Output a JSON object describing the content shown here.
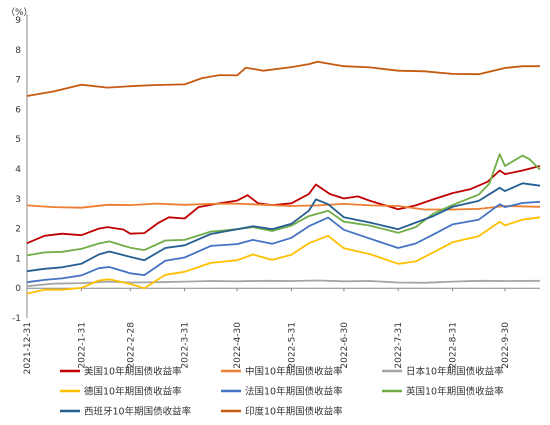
{
  "chart_data": {
    "type": "line",
    "unit_label": "（%）",
    "ylim": [
      -1,
      9
    ],
    "y_ticks": [
      -1,
      0,
      1,
      2,
      3,
      4,
      5,
      6,
      7,
      8,
      9
    ],
    "x_range": [
      "2021-12-31",
      "2022-10-20"
    ],
    "x_ticks": [
      "2021-12-31",
      "2022-1-31",
      "2022-2-28",
      "2022-3-31",
      "2022-4-30",
      "2022-5-31",
      "2022-6-30",
      "2022-7-31",
      "2022-8-31",
      "2022-9-30"
    ],
    "grid": false,
    "legend_position": "bottom",
    "series": [
      {
        "name": "美国10年期国债收益率",
        "color": "#c00000",
        "points": [
          [
            "2021-12-31",
            1.51
          ],
          [
            "2022-01-10",
            1.76
          ],
          [
            "2022-01-20",
            1.83
          ],
          [
            "2022-01-31",
            1.78
          ],
          [
            "2022-02-10",
            2.0
          ],
          [
            "2022-02-15",
            2.05
          ],
          [
            "2022-02-24",
            1.97
          ],
          [
            "2022-02-28",
            1.83
          ],
          [
            "2022-03-08",
            1.85
          ],
          [
            "2022-03-16",
            2.19
          ],
          [
            "2022-03-22",
            2.38
          ],
          [
            "2022-03-31",
            2.34
          ],
          [
            "2022-04-08",
            2.72
          ],
          [
            "2022-04-20",
            2.85
          ],
          [
            "2022-04-30",
            2.94
          ],
          [
            "2022-05-06",
            3.12
          ],
          [
            "2022-05-12",
            2.85
          ],
          [
            "2022-05-20",
            2.79
          ],
          [
            "2022-05-31",
            2.85
          ],
          [
            "2022-06-10",
            3.16
          ],
          [
            "2022-06-14",
            3.48
          ],
          [
            "2022-06-22",
            3.16
          ],
          [
            "2022-06-30",
            3.01
          ],
          [
            "2022-07-08",
            3.08
          ],
          [
            "2022-07-15",
            2.93
          ],
          [
            "2022-07-31",
            2.65
          ],
          [
            "2022-08-10",
            2.78
          ],
          [
            "2022-08-20",
            2.98
          ],
          [
            "2022-08-31",
            3.19
          ],
          [
            "2022-09-10",
            3.32
          ],
          [
            "2022-09-20",
            3.57
          ],
          [
            "2022-09-27",
            3.95
          ],
          [
            "2022-09-30",
            3.83
          ],
          [
            "2022-10-10",
            3.95
          ],
          [
            "2022-10-20",
            4.1
          ]
        ]
      },
      {
        "name": "中国10年期国债收益率",
        "color": "#ed7d31",
        "points": [
          [
            "2021-12-31",
            2.78
          ],
          [
            "2022-01-15",
            2.72
          ],
          [
            "2022-01-31",
            2.7
          ],
          [
            "2022-02-15",
            2.8
          ],
          [
            "2022-02-28",
            2.79
          ],
          [
            "2022-03-15",
            2.84
          ],
          [
            "2022-03-31",
            2.8
          ],
          [
            "2022-04-15",
            2.83
          ],
          [
            "2022-04-30",
            2.84
          ],
          [
            "2022-05-15",
            2.8
          ],
          [
            "2022-05-31",
            2.76
          ],
          [
            "2022-06-15",
            2.78
          ],
          [
            "2022-06-30",
            2.83
          ],
          [
            "2022-07-15",
            2.78
          ],
          [
            "2022-07-31",
            2.76
          ],
          [
            "2022-08-15",
            2.64
          ],
          [
            "2022-08-31",
            2.64
          ],
          [
            "2022-09-15",
            2.66
          ],
          [
            "2022-09-30",
            2.76
          ],
          [
            "2022-10-20",
            2.73
          ]
        ]
      },
      {
        "name": "日本10年期国债收益率",
        "color": "#a5a5a5",
        "points": [
          [
            "2021-12-31",
            0.07
          ],
          [
            "2022-01-15",
            0.15
          ],
          [
            "2022-01-31",
            0.17
          ],
          [
            "2022-02-15",
            0.22
          ],
          [
            "2022-02-28",
            0.19
          ],
          [
            "2022-03-15",
            0.2
          ],
          [
            "2022-03-31",
            0.22
          ],
          [
            "2022-04-15",
            0.24
          ],
          [
            "2022-04-30",
            0.23
          ],
          [
            "2022-05-15",
            0.25
          ],
          [
            "2022-05-31",
            0.24
          ],
          [
            "2022-06-15",
            0.26
          ],
          [
            "2022-06-30",
            0.23
          ],
          [
            "2022-07-15",
            0.24
          ],
          [
            "2022-07-31",
            0.19
          ],
          [
            "2022-08-15",
            0.18
          ],
          [
            "2022-08-31",
            0.22
          ],
          [
            "2022-09-15",
            0.25
          ],
          [
            "2022-09-30",
            0.24
          ],
          [
            "2022-10-20",
            0.25
          ]
        ]
      },
      {
        "name": "德国10年期国债收益率",
        "color": "#ffc000",
        "points": [
          [
            "2021-12-31",
            -0.18
          ],
          [
            "2022-01-10",
            -0.05
          ],
          [
            "2022-01-20",
            -0.05
          ],
          [
            "2022-01-31",
            0.01
          ],
          [
            "2022-02-10",
            0.26
          ],
          [
            "2022-02-16",
            0.3
          ],
          [
            "2022-02-28",
            0.14
          ],
          [
            "2022-03-08",
            0.0
          ],
          [
            "2022-03-20",
            0.45
          ],
          [
            "2022-03-31",
            0.55
          ],
          [
            "2022-04-15",
            0.85
          ],
          [
            "2022-04-30",
            0.94
          ],
          [
            "2022-05-09",
            1.13
          ],
          [
            "2022-05-20",
            0.95
          ],
          [
            "2022-05-31",
            1.12
          ],
          [
            "2022-06-10",
            1.51
          ],
          [
            "2022-06-21",
            1.76
          ],
          [
            "2022-06-30",
            1.34
          ],
          [
            "2022-07-15",
            1.14
          ],
          [
            "2022-07-31",
            0.82
          ],
          [
            "2022-08-10",
            0.9
          ],
          [
            "2022-08-20",
            1.2
          ],
          [
            "2022-08-31",
            1.54
          ],
          [
            "2022-09-15",
            1.75
          ],
          [
            "2022-09-27",
            2.23
          ],
          [
            "2022-09-30",
            2.11
          ],
          [
            "2022-10-10",
            2.3
          ],
          [
            "2022-10-20",
            2.38
          ]
        ]
      },
      {
        "name": "法国10年期国债收益率",
        "color": "#4472c4",
        "points": [
          [
            "2021-12-31",
            0.2
          ],
          [
            "2022-01-10",
            0.28
          ],
          [
            "2022-01-20",
            0.33
          ],
          [
            "2022-01-31",
            0.43
          ],
          [
            "2022-02-10",
            0.67
          ],
          [
            "2022-02-16",
            0.71
          ],
          [
            "2022-02-28",
            0.5
          ],
          [
            "2022-03-08",
            0.44
          ],
          [
            "2022-03-20",
            0.92
          ],
          [
            "2022-03-31",
            1.03
          ],
          [
            "2022-04-15",
            1.42
          ],
          [
            "2022-04-30",
            1.48
          ],
          [
            "2022-05-09",
            1.62
          ],
          [
            "2022-05-20",
            1.49
          ],
          [
            "2022-05-31",
            1.69
          ],
          [
            "2022-06-10",
            2.08
          ],
          [
            "2022-06-21",
            2.37
          ],
          [
            "2022-06-30",
            1.96
          ],
          [
            "2022-07-15",
            1.66
          ],
          [
            "2022-07-31",
            1.35
          ],
          [
            "2022-08-10",
            1.5
          ],
          [
            "2022-08-20",
            1.8
          ],
          [
            "2022-08-31",
            2.14
          ],
          [
            "2022-09-15",
            2.3
          ],
          [
            "2022-09-27",
            2.82
          ],
          [
            "2022-09-30",
            2.72
          ],
          [
            "2022-10-10",
            2.86
          ],
          [
            "2022-10-20",
            2.9
          ]
        ]
      },
      {
        "name": "英国10年期国债收益率",
        "color": "#70ad47",
        "points": [
          [
            "2021-12-31",
            1.1
          ],
          [
            "2022-01-10",
            1.2
          ],
          [
            "2022-01-20",
            1.22
          ],
          [
            "2022-01-31",
            1.32
          ],
          [
            "2022-02-10",
            1.5
          ],
          [
            "2022-02-16",
            1.57
          ],
          [
            "2022-02-28",
            1.36
          ],
          [
            "2022-03-08",
            1.28
          ],
          [
            "2022-03-20",
            1.6
          ],
          [
            "2022-03-31",
            1.62
          ],
          [
            "2022-04-15",
            1.9
          ],
          [
            "2022-04-30",
            1.98
          ],
          [
            "2022-05-09",
            2.05
          ],
          [
            "2022-05-20",
            1.92
          ],
          [
            "2022-05-31",
            2.1
          ],
          [
            "2022-06-10",
            2.42
          ],
          [
            "2022-06-21",
            2.6
          ],
          [
            "2022-06-30",
            2.23
          ],
          [
            "2022-07-15",
            2.1
          ],
          [
            "2022-07-31",
            1.86
          ],
          [
            "2022-08-10",
            2.05
          ],
          [
            "2022-08-20",
            2.5
          ],
          [
            "2022-08-31",
            2.79
          ],
          [
            "2022-09-15",
            3.14
          ],
          [
            "2022-09-21",
            3.5
          ],
          [
            "2022-09-27",
            4.5
          ],
          [
            "2022-09-30",
            4.1
          ],
          [
            "2022-10-10",
            4.45
          ],
          [
            "2022-10-14",
            4.33
          ],
          [
            "2022-10-20",
            3.98
          ]
        ]
      },
      {
        "name": "西班牙10年期国债收益率",
        "color": "#255e91",
        "points": [
          [
            "2021-12-31",
            0.57
          ],
          [
            "2022-01-10",
            0.65
          ],
          [
            "2022-01-20",
            0.7
          ],
          [
            "2022-01-31",
            0.82
          ],
          [
            "2022-02-10",
            1.13
          ],
          [
            "2022-02-16",
            1.23
          ],
          [
            "2022-02-28",
            1.05
          ],
          [
            "2022-03-08",
            0.94
          ],
          [
            "2022-03-20",
            1.35
          ],
          [
            "2022-03-31",
            1.44
          ],
          [
            "2022-04-15",
            1.82
          ],
          [
            "2022-04-30",
            1.98
          ],
          [
            "2022-05-09",
            2.08
          ],
          [
            "2022-05-20",
            1.98
          ],
          [
            "2022-05-31",
            2.16
          ],
          [
            "2022-06-10",
            2.6
          ],
          [
            "2022-06-14",
            2.98
          ],
          [
            "2022-06-21",
            2.82
          ],
          [
            "2022-06-30",
            2.38
          ],
          [
            "2022-07-15",
            2.2
          ],
          [
            "2022-07-31",
            1.98
          ],
          [
            "2022-08-10",
            2.2
          ],
          [
            "2022-08-20",
            2.42
          ],
          [
            "2022-08-31",
            2.73
          ],
          [
            "2022-09-15",
            2.93
          ],
          [
            "2022-09-27",
            3.37
          ],
          [
            "2022-09-30",
            3.26
          ],
          [
            "2022-10-10",
            3.52
          ],
          [
            "2022-10-20",
            3.44
          ]
        ]
      },
      {
        "name": "印度10年期国债收益率",
        "color": "#c55a11",
        "points": [
          [
            "2021-12-31",
            6.45
          ],
          [
            "2022-01-15",
            6.6
          ],
          [
            "2022-01-31",
            6.83
          ],
          [
            "2022-02-15",
            6.73
          ],
          [
            "2022-02-28",
            6.78
          ],
          [
            "2022-03-15",
            6.82
          ],
          [
            "2022-03-31",
            6.84
          ],
          [
            "2022-04-10",
            7.05
          ],
          [
            "2022-04-20",
            7.15
          ],
          [
            "2022-04-30",
            7.14
          ],
          [
            "2022-05-05",
            7.4
          ],
          [
            "2022-05-15",
            7.3
          ],
          [
            "2022-05-31",
            7.42
          ],
          [
            "2022-06-10",
            7.52
          ],
          [
            "2022-06-15",
            7.6
          ],
          [
            "2022-06-30",
            7.45
          ],
          [
            "2022-07-15",
            7.41
          ],
          [
            "2022-07-31",
            7.3
          ],
          [
            "2022-08-15",
            7.28
          ],
          [
            "2022-08-31",
            7.19
          ],
          [
            "2022-09-15",
            7.18
          ],
          [
            "2022-09-30",
            7.39
          ],
          [
            "2022-10-10",
            7.45
          ],
          [
            "2022-10-20",
            7.45
          ]
        ]
      }
    ]
  }
}
